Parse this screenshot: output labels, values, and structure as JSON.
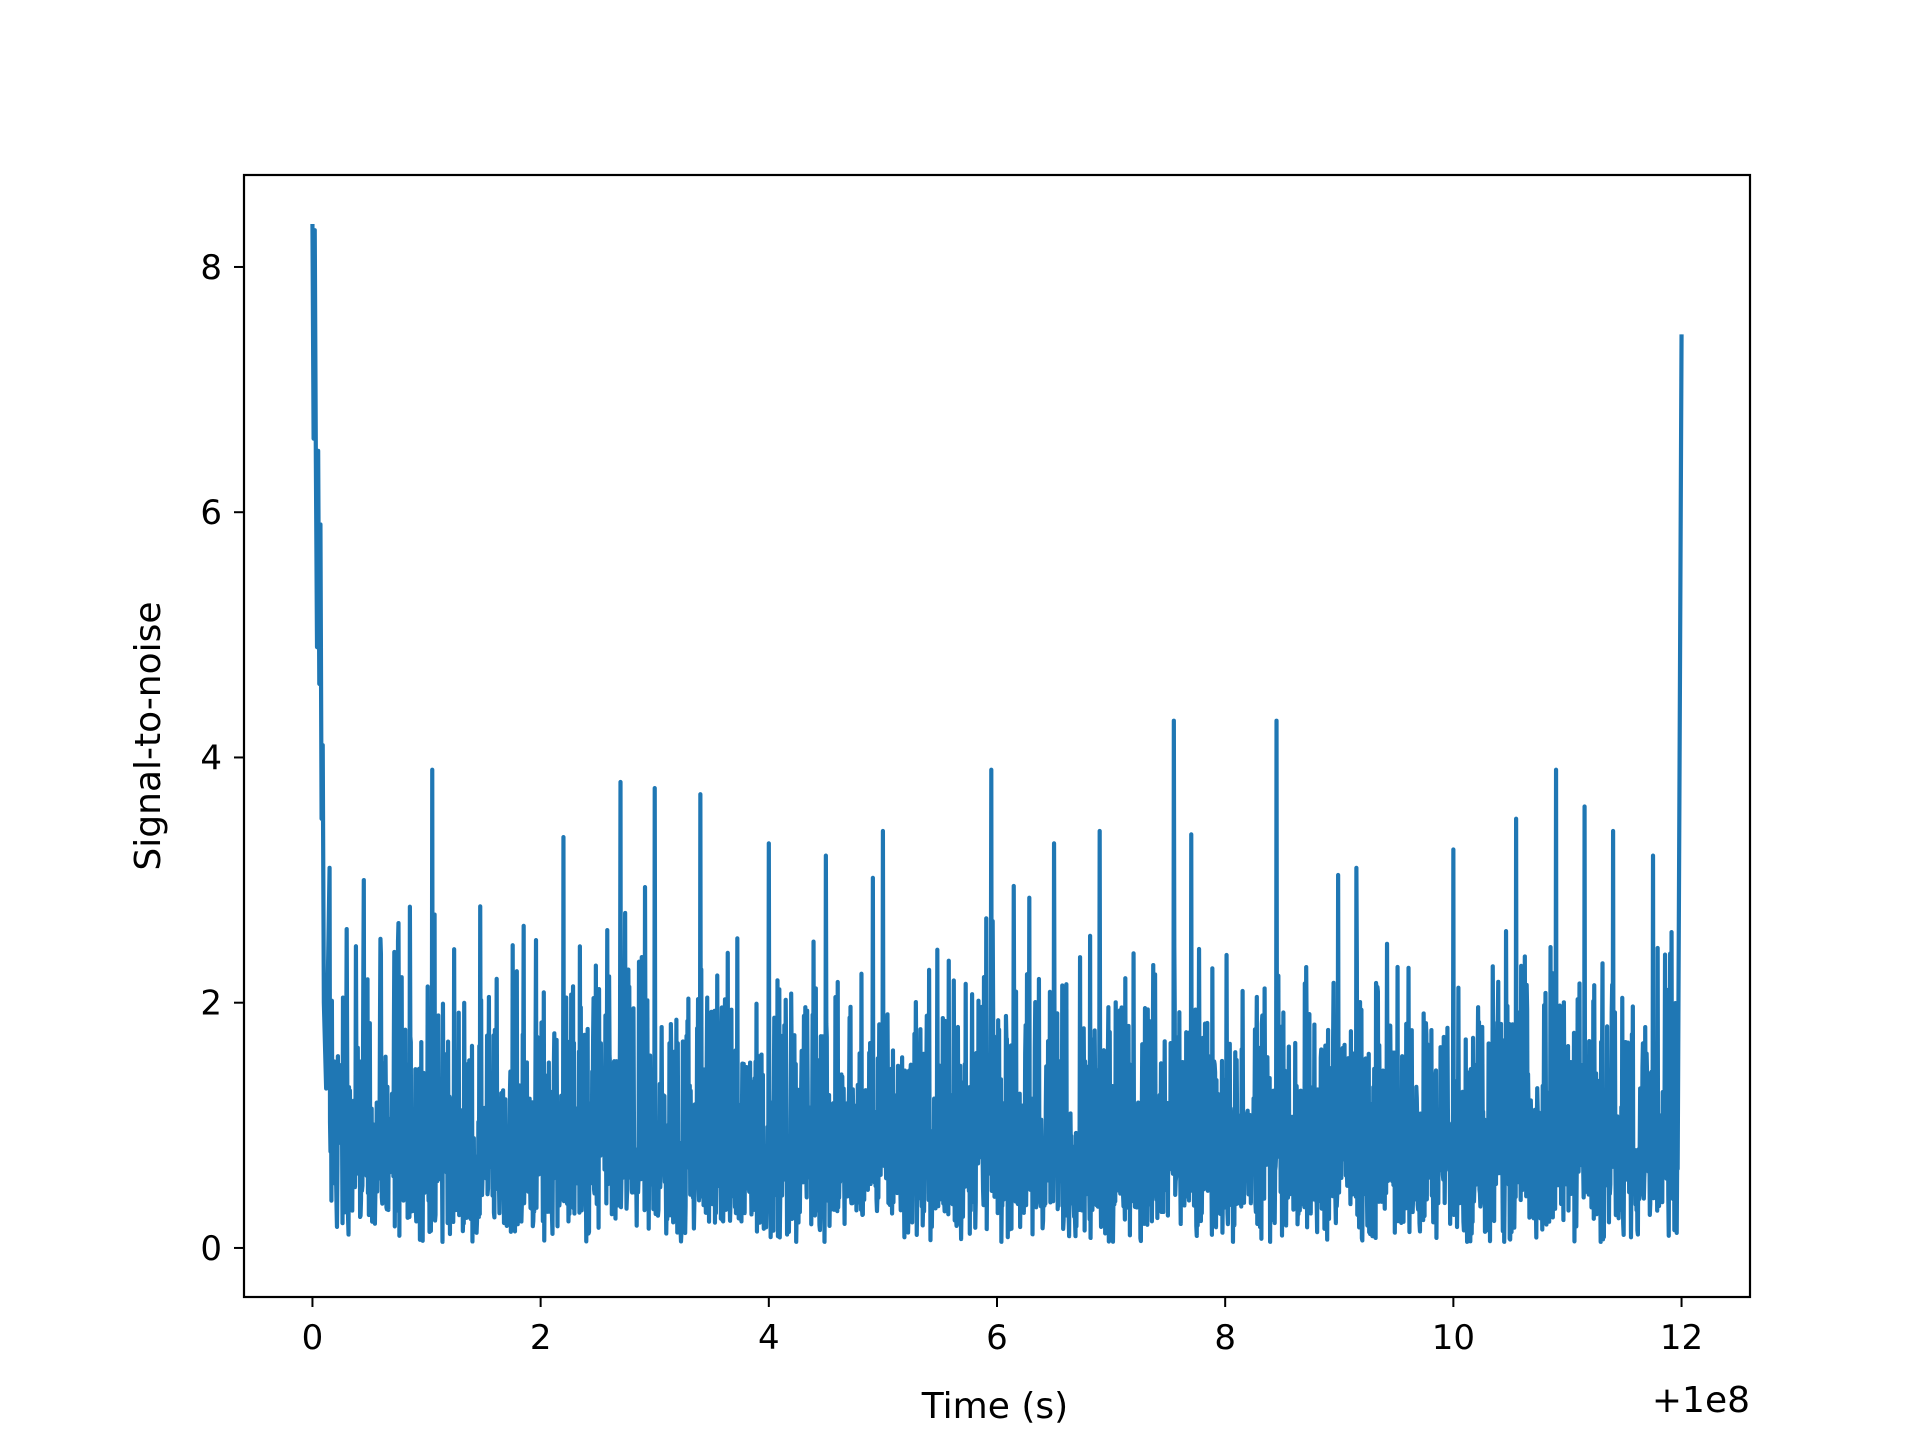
{
  "chart_data": {
    "type": "line",
    "title": "",
    "xlabel": "Time (s)",
    "ylabel": "Signal-to-noise",
    "x_offset_label": "+1e8",
    "xlim": [
      -0.6,
      12.6
    ],
    "ylim": [
      -0.4,
      8.75
    ],
    "xticks": [
      0,
      2,
      4,
      6,
      8,
      10,
      12
    ],
    "yticks": [
      0,
      2,
      4,
      6,
      8
    ],
    "grid": false,
    "legend": "none",
    "series_color": "#1f77b4",
    "series": [
      {
        "x": [
          0.0,
          0.01,
          0.02,
          0.03,
          0.04,
          0.05,
          0.06,
          0.07,
          0.08,
          0.09,
          0.1,
          0.12,
          0.15,
          0.3,
          0.45,
          0.6,
          0.75,
          1.05,
          1.25,
          2.2,
          2.7,
          3.0,
          3.4,
          4.0,
          4.5,
          5.0,
          5.95,
          6.5,
          6.9,
          7.55,
          8.45,
          9.15,
          10.0,
          10.55,
          10.9,
          11.15,
          11.4,
          11.75,
          11.9,
          11.97,
          12.0
        ],
        "values": [
          8.35,
          6.6,
          8.3,
          6.4,
          4.9,
          6.5,
          4.6,
          5.9,
          3.5,
          4.1,
          2.0,
          1.3,
          3.1,
          2.6,
          3.0,
          2.4,
          2.5,
          3.9,
          1.6,
          3.35,
          3.8,
          3.75,
          3.7,
          3.3,
          3.2,
          3.4,
          3.9,
          3.3,
          3.4,
          4.3,
          4.3,
          3.1,
          3.25,
          3.5,
          3.9,
          3.6,
          3.4,
          3.2,
          2.4,
          1.4,
          7.45
        ]
      }
    ]
  }
}
